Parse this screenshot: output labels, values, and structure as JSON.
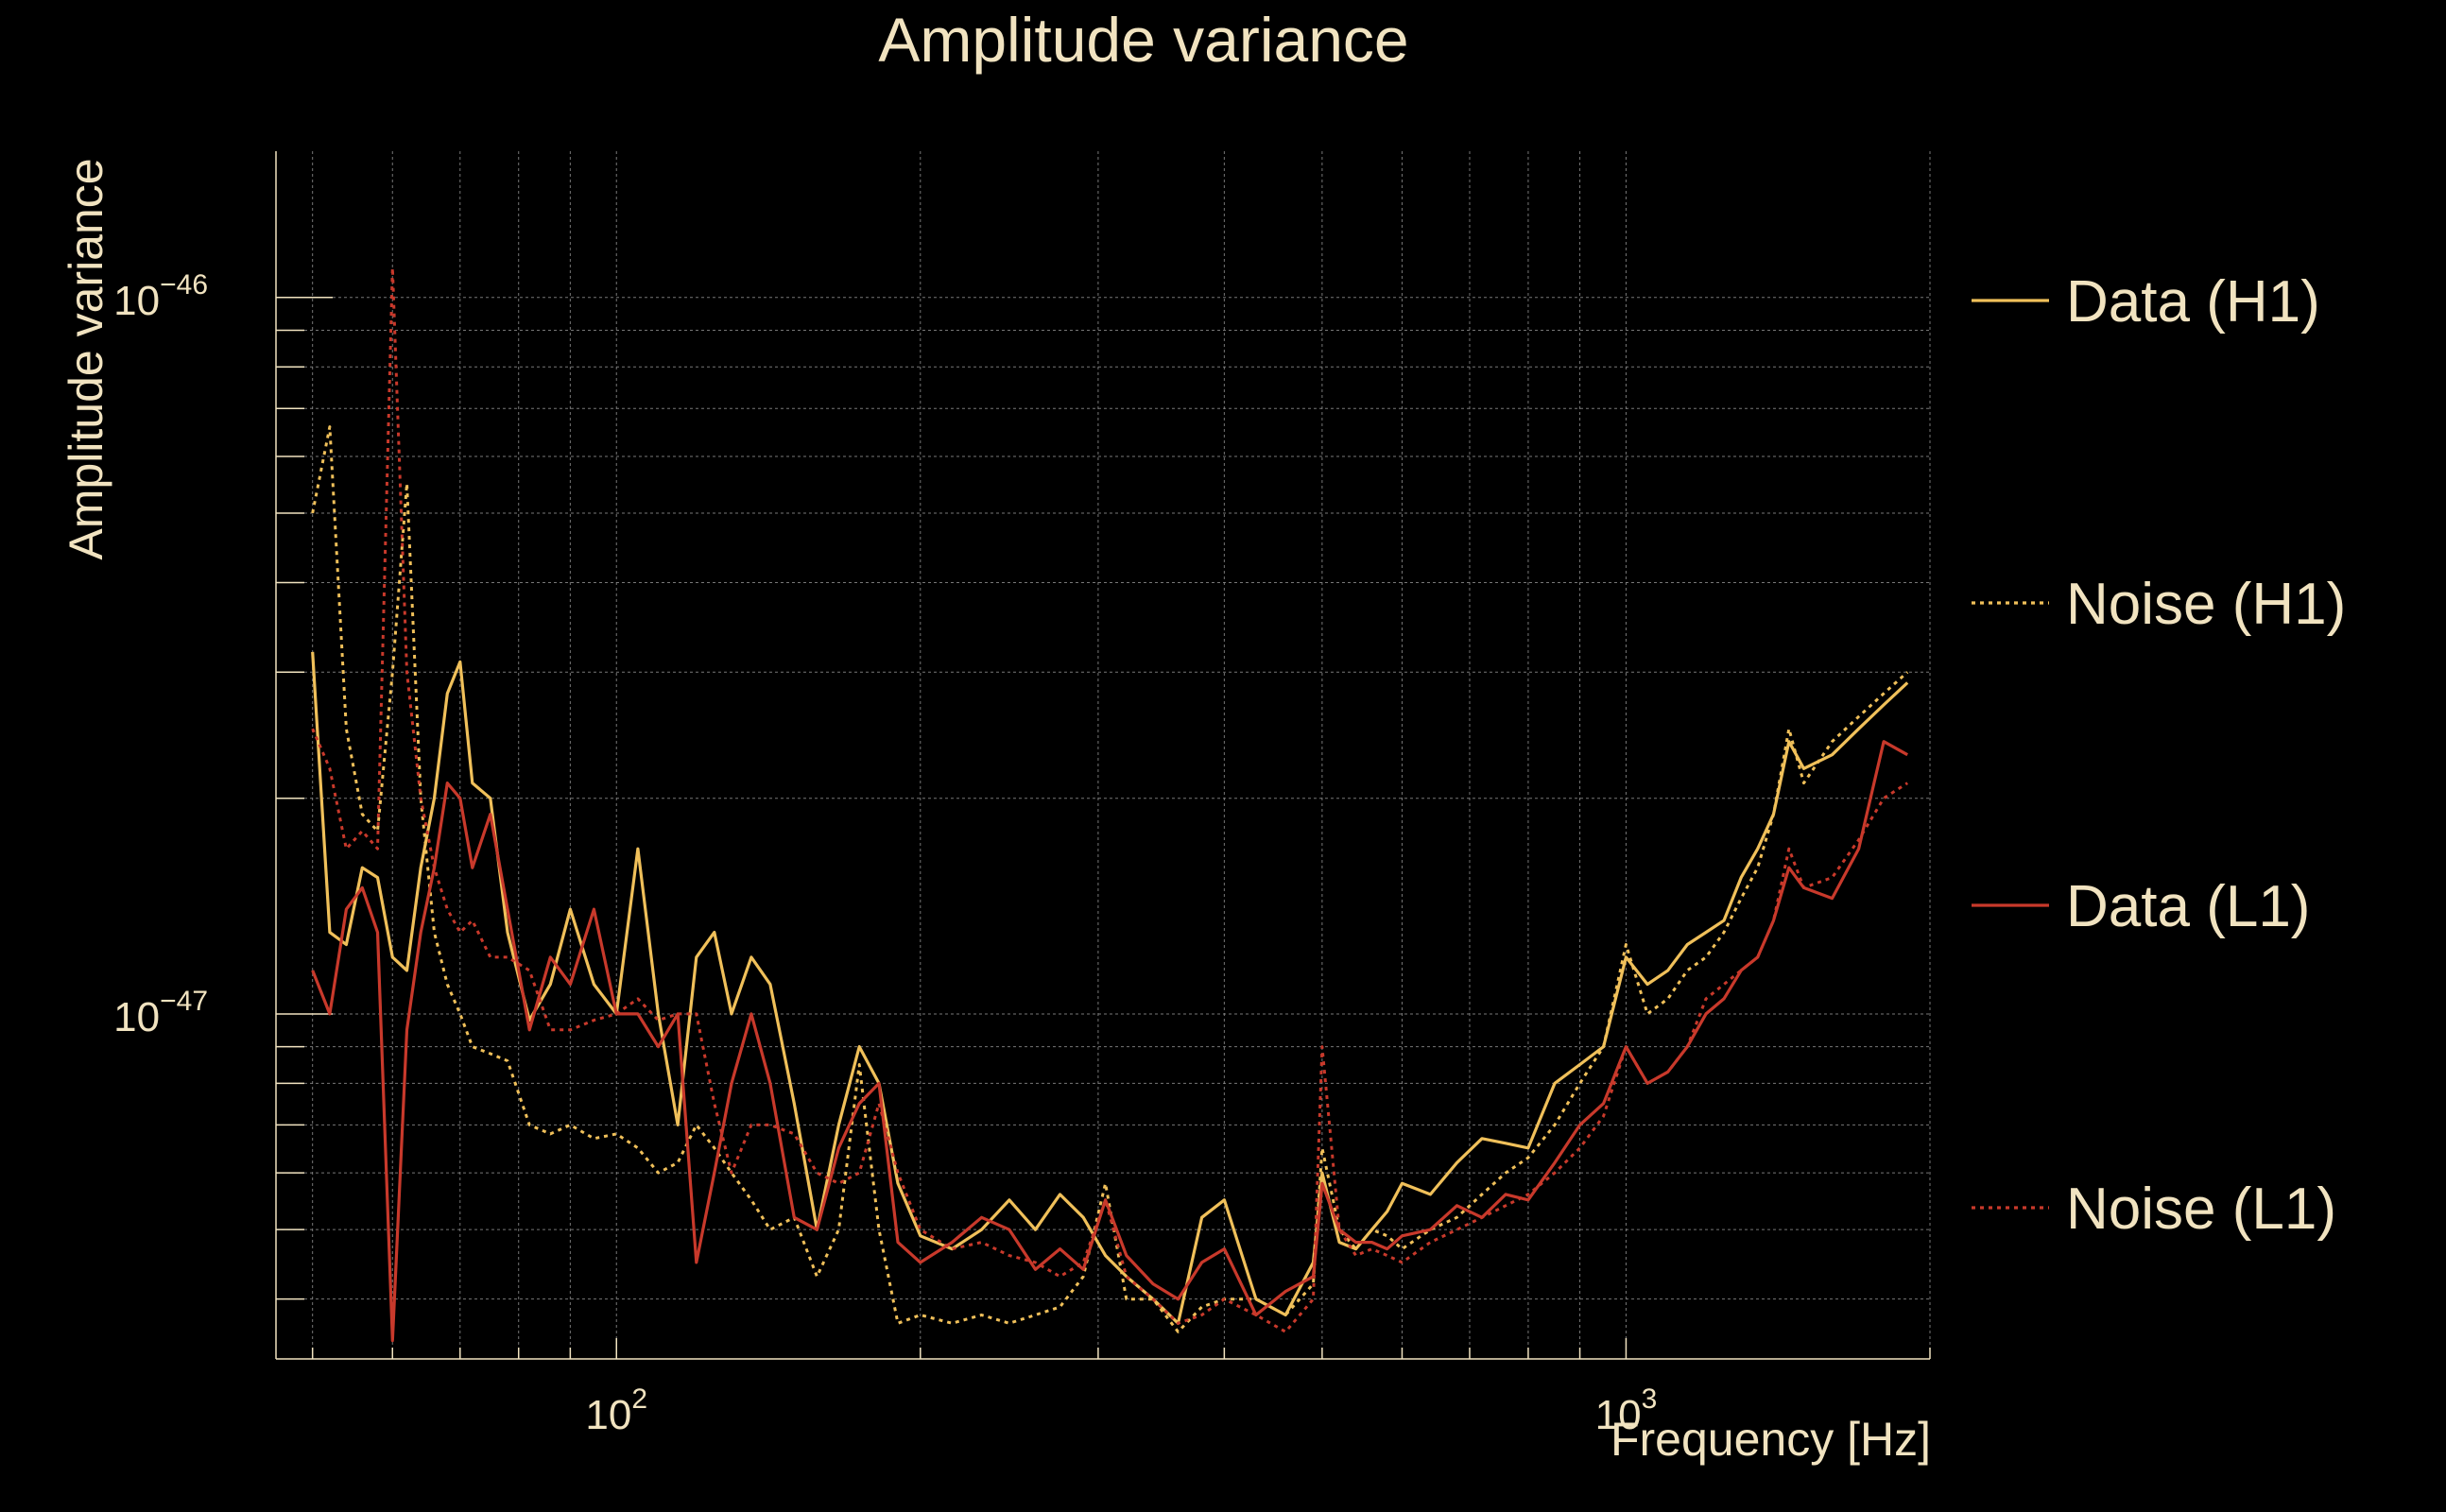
{
  "chart_data": {
    "type": "line",
    "title": "Amplitude variance",
    "xlabel": "Frequency [Hz]",
    "ylabel": "Amplitude variance",
    "x_scale": "log",
    "y_scale": "log",
    "xlim": [
      46,
      2000
    ],
    "ylim": [
      3.3e-48,
      1.6e-46
    ],
    "x_ticks": [
      {
        "value": 100,
        "base": "10",
        "exp": "2"
      },
      {
        "value": 1000,
        "base": "10",
        "exp": "3"
      }
    ],
    "y_ticks": [
      {
        "value": 1e-47,
        "base": "10",
        "exp": "−47"
      },
      {
        "value": 1e-46,
        "base": "10",
        "exp": "−46"
      }
    ],
    "grid": true,
    "legend_position": "right",
    "colors": {
      "background": "#000000",
      "text": "#f1e3c0",
      "grid": "#8c8c8c",
      "h1": "#f0c05a",
      "l1": "#c8392b"
    },
    "series": [
      {
        "name": "Data (H1)",
        "color": "#f0c05a",
        "style": "solid",
        "x": [
          50,
          52,
          54,
          56,
          58,
          60,
          62,
          64,
          66,
          68,
          70,
          72,
          75,
          78,
          82,
          86,
          90,
          95,
          100,
          105,
          110,
          115,
          120,
          125,
          130,
          136,
          142,
          150,
          158,
          166,
          174,
          182,
          190,
          200,
          215,
          230,
          245,
          260,
          275,
          290,
          305,
          320,
          340,
          360,
          380,
          400,
          430,
          460,
          490,
          500,
          520,
          540,
          560,
          580,
          600,
          640,
          680,
          720,
          760,
          800,
          850,
          900,
          950,
          1000,
          1050,
          1100,
          1150,
          1200,
          1250,
          1300,
          1350,
          1400,
          1450,
          1500,
          1600,
          1700,
          1800,
          1900
        ],
        "values": [
          3.2e-47,
          1.3e-47,
          1.25e-47,
          1.6e-47,
          1.55e-47,
          1.2e-47,
          1.15e-47,
          1.6e-47,
          2e-47,
          2.8e-47,
          3.1e-47,
          2.1e-47,
          2e-47,
          1.3e-47,
          9.8e-48,
          1.1e-47,
          1.4e-47,
          1.1e-47,
          1e-47,
          1.7e-47,
          1e-47,
          7e-48,
          1.2e-47,
          1.3e-47,
          1e-47,
          1.2e-47,
          1.1e-47,
          7.5e-48,
          5e-48,
          7e-48,
          9e-48,
          8e-48,
          5.8e-48,
          4.9e-48,
          4.7e-48,
          5e-48,
          5.5e-48,
          5e-48,
          5.6e-48,
          5.2e-48,
          4.6e-48,
          4.3e-48,
          4e-48,
          3.7e-48,
          5.2e-48,
          5.5e-48,
          4e-48,
          3.8e-48,
          4.5e-48,
          6e-48,
          4.8e-48,
          4.7e-48,
          5e-48,
          5.3e-48,
          5.8e-48,
          5.6e-48,
          6.2e-48,
          6.7e-48,
          6.6e-48,
          6.5e-48,
          8e-48,
          8.5e-48,
          9e-48,
          1.2e-47,
          1.1e-47,
          1.15e-47,
          1.25e-47,
          1.3e-47,
          1.35e-47,
          1.55e-47,
          1.7e-47,
          1.9e-47,
          2.4e-47,
          2.2e-47,
          2.3e-47,
          2.5e-47,
          2.7e-47,
          2.9e-47
        ]
      },
      {
        "name": "Noise (H1)",
        "color": "#f0c05a",
        "style": "dotted",
        "x": [
          50,
          52,
          54,
          56,
          58,
          60,
          62,
          64,
          66,
          68,
          70,
          72,
          75,
          78,
          82,
          86,
          90,
          95,
          100,
          105,
          110,
          115,
          120,
          125,
          130,
          136,
          142,
          150,
          158,
          166,
          174,
          182,
          190,
          200,
          215,
          230,
          245,
          260,
          275,
          290,
          305,
          320,
          340,
          360,
          380,
          400,
          430,
          460,
          490,
          500,
          520,
          540,
          560,
          580,
          600,
          640,
          680,
          720,
          760,
          800,
          850,
          900,
          950,
          1000,
          1050,
          1100,
          1150,
          1200,
          1250,
          1300,
          1350,
          1400,
          1450,
          1500,
          1600,
          1700,
          1800,
          1900
        ],
        "values": [
          5e-47,
          6.6e-47,
          2.5e-47,
          1.9e-47,
          1.8e-47,
          3e-47,
          5.5e-47,
          2e-47,
          1.3e-47,
          1.1e-47,
          1e-47,
          9e-48,
          8.8e-48,
          8.6e-48,
          7e-48,
          6.8e-48,
          7e-48,
          6.7e-48,
          6.8e-48,
          6.5e-48,
          6e-48,
          6.2e-48,
          7e-48,
          6.5e-48,
          6e-48,
          5.5e-48,
          5e-48,
          5.2e-48,
          4.3e-48,
          5e-48,
          8.5e-48,
          5e-48,
          3.7e-48,
          3.8e-48,
          3.7e-48,
          3.8e-48,
          3.7e-48,
          3.8e-48,
          3.9e-48,
          4.3e-48,
          5.8e-48,
          4e-48,
          4e-48,
          3.6e-48,
          3.9e-48,
          4e-48,
          4e-48,
          3.8e-48,
          4.2e-48,
          6.5e-48,
          5e-48,
          4.7e-48,
          5e-48,
          4.9e-48,
          4.7e-48,
          5e-48,
          5.2e-48,
          5.6e-48,
          6e-48,
          6.3e-48,
          7e-48,
          8e-48,
          9e-48,
          1.25e-47,
          1e-47,
          1.05e-47,
          1.15e-47,
          1.2e-47,
          1.3e-47,
          1.45e-47,
          1.6e-47,
          1.9e-47,
          2.5e-47,
          2.1e-47,
          2.4e-47,
          2.6e-47,
          2.8e-47,
          3e-47
        ]
      },
      {
        "name": "Data (L1)",
        "color": "#c8392b",
        "style": "solid",
        "x": [
          50,
          52,
          54,
          56,
          58,
          60,
          62,
          64,
          66,
          68,
          70,
          72,
          75,
          78,
          82,
          86,
          90,
          95,
          100,
          105,
          110,
          115,
          120,
          125,
          130,
          136,
          142,
          150,
          158,
          166,
          174,
          182,
          190,
          200,
          215,
          230,
          245,
          260,
          275,
          290,
          305,
          320,
          340,
          360,
          380,
          400,
          430,
          460,
          490,
          500,
          520,
          540,
          560,
          580,
          600,
          640,
          680,
          720,
          760,
          800,
          850,
          900,
          950,
          1000,
          1050,
          1100,
          1150,
          1200,
          1250,
          1300,
          1350,
          1400,
          1450,
          1500,
          1600,
          1700,
          1800,
          1900
        ],
        "values": [
          1.15e-47,
          1e-47,
          1.4e-47,
          1.5e-47,
          1.3e-47,
          3.5e-48,
          9.5e-48,
          1.3e-47,
          1.6e-47,
          2.1e-47,
          2e-47,
          1.6e-47,
          1.9e-47,
          1.4e-47,
          9.5e-48,
          1.2e-47,
          1.1e-47,
          1.4e-47,
          1e-47,
          1e-47,
          9e-48,
          1e-47,
          4.5e-48,
          6e-48,
          8e-48,
          1e-47,
          8e-48,
          5.2e-48,
          5e-48,
          6.5e-48,
          7.5e-48,
          8e-48,
          4.8e-48,
          4.5e-48,
          4.8e-48,
          5.2e-48,
          5e-48,
          4.4e-48,
          4.7e-48,
          4.4e-48,
          5.5e-48,
          4.6e-48,
          4.2e-48,
          4e-48,
          4.5e-48,
          4.7e-48,
          3.8e-48,
          4.1e-48,
          4.3e-48,
          5.8e-48,
          5e-48,
          4.8e-48,
          4.8e-48,
          4.7e-48,
          4.9e-48,
          5e-48,
          5.4e-48,
          5.2e-48,
          5.6e-48,
          5.5e-48,
          6.2e-48,
          7e-48,
          7.5e-48,
          9e-48,
          8e-48,
          8.3e-48,
          9e-48,
          1e-47,
          1.05e-47,
          1.15e-47,
          1.2e-47,
          1.35e-47,
          1.6e-47,
          1.5e-47,
          1.45e-47,
          1.7e-47,
          2.4e-47,
          2.3e-47
        ]
      },
      {
        "name": "Noise (L1)",
        "color": "#c8392b",
        "style": "dotted",
        "x": [
          50,
          52,
          54,
          56,
          58,
          60,
          62,
          64,
          66,
          68,
          70,
          72,
          75,
          78,
          82,
          86,
          90,
          95,
          100,
          105,
          110,
          115,
          120,
          125,
          130,
          136,
          142,
          150,
          158,
          166,
          174,
          182,
          190,
          200,
          215,
          230,
          245,
          260,
          275,
          290,
          305,
          320,
          340,
          360,
          380,
          400,
          430,
          460,
          490,
          500,
          520,
          540,
          560,
          580,
          600,
          640,
          680,
          720,
          760,
          800,
          850,
          900,
          950,
          1000,
          1050,
          1100,
          1150,
          1200,
          1250,
          1300,
          1350,
          1400,
          1450,
          1500,
          1600,
          1700,
          1800,
          1900
        ],
        "values": [
          2.5e-47,
          2.2e-47,
          1.7e-47,
          1.8e-47,
          1.7e-47,
          1.1e-46,
          3e-47,
          2e-47,
          1.6e-47,
          1.4e-47,
          1.3e-47,
          1.35e-47,
          1.2e-47,
          1.2e-47,
          1.15e-47,
          9.5e-48,
          9.5e-48,
          9.8e-48,
          1e-47,
          1.05e-47,
          9.8e-48,
          1e-47,
          1e-47,
          7.5e-48,
          6e-48,
          7e-48,
          7e-48,
          6.8e-48,
          6e-48,
          5.8e-48,
          6e-48,
          7.5e-48,
          6e-48,
          5e-48,
          4.7e-48,
          4.8e-48,
          4.6e-48,
          4.5e-48,
          4.3e-48,
          4.5e-48,
          5.5e-48,
          4.3e-48,
          4e-48,
          3.7e-48,
          3.8e-48,
          4e-48,
          3.8e-48,
          3.6e-48,
          4e-48,
          9e-48,
          5e-48,
          4.6e-48,
          4.7e-48,
          4.6e-48,
          4.5e-48,
          4.8e-48,
          5e-48,
          5.2e-48,
          5.4e-48,
          5.6e-48,
          6e-48,
          6.5e-48,
          7.2e-48,
          9e-48,
          8e-48,
          8.3e-48,
          9e-48,
          1.05e-47,
          1.1e-47,
          1.15e-47,
          1.2e-47,
          1.35e-47,
          1.7e-47,
          1.5e-47,
          1.55e-47,
          1.75e-47,
          2e-47,
          2.1e-47
        ]
      }
    ]
  }
}
